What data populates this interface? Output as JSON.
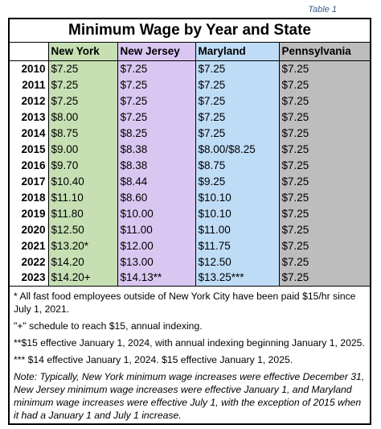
{
  "caption": "Table 1",
  "title": "Minimum Wage by Year and State",
  "columns": [
    "New York",
    "New Jersey",
    "Maryland",
    "Pennsylvania"
  ],
  "rows": [
    {
      "year": "2010",
      "ny": "$7.25",
      "nj": "$7.25",
      "md": "$7.25",
      "pa": "$7.25"
    },
    {
      "year": "2011",
      "ny": "$7.25",
      "nj": "$7.25",
      "md": "$7.25",
      "pa": "$7.25"
    },
    {
      "year": "2012",
      "ny": "$7.25",
      "nj": "$7.25",
      "md": "$7.25",
      "pa": "$7.25"
    },
    {
      "year": "2013",
      "ny": "$8.00",
      "nj": "$7.25",
      "md": "$7.25",
      "pa": "$7.25"
    },
    {
      "year": "2014",
      "ny": "$8.75",
      "nj": "$8.25",
      "md": "$7.25",
      "pa": "$7.25"
    },
    {
      "year": "2015",
      "ny": "$9.00",
      "nj": "$8.38",
      "md": "$8.00/$8.25",
      "pa": "$7.25"
    },
    {
      "year": "2016",
      "ny": "$9.70",
      "nj": "$8.38",
      "md": "$8.75",
      "pa": "$7.25"
    },
    {
      "year": "2017",
      "ny": "$10.40",
      "nj": "$8.44",
      "md": "$9.25",
      "pa": "$7.25"
    },
    {
      "year": "2018",
      "ny": "$11.10",
      "nj": "$8.60",
      "md": "$10.10",
      "pa": "$7.25"
    },
    {
      "year": "2019",
      "ny": "$11.80",
      "nj": "$10.00",
      "md": "$10.10",
      "pa": "$7.25"
    },
    {
      "year": "2020",
      "ny": "$12.50",
      "nj": "$11.00",
      "md": "$11.00",
      "pa": "$7.25"
    },
    {
      "year": "2021",
      "ny": "$13.20*",
      "nj": "$12.00",
      "md": "$11.75",
      "pa": "$7.25"
    },
    {
      "year": "2022",
      "ny": "$14.20",
      "nj": "$13.00",
      "md": "$12.50",
      "pa": "$7.25"
    },
    {
      "year": "2023",
      "ny": "$14.20+",
      "nj": "$14.13**",
      "md": "$13.25***",
      "pa": "$7.25"
    }
  ],
  "notes": [
    "* All fast food employees outside of New York City have been paid $15/hr since July 1, 2021.",
    "\"+\" schedule to reach $15, annual indexing.",
    "**$15 effective January 1, 2024, with annual indexing beginning January 1, 2025.",
    "*** $14 effective January 1, 2024. $15 effective January 1, 2025."
  ],
  "note_italic": "Note: Typically, New York minimum wage increases were effective December 31, New Jersey minimum wage increases were effective January 1, and Maryland minimum wage increases were effective July 1, with the exception of 2015 when it had a January 1 and July 1 increase."
}
